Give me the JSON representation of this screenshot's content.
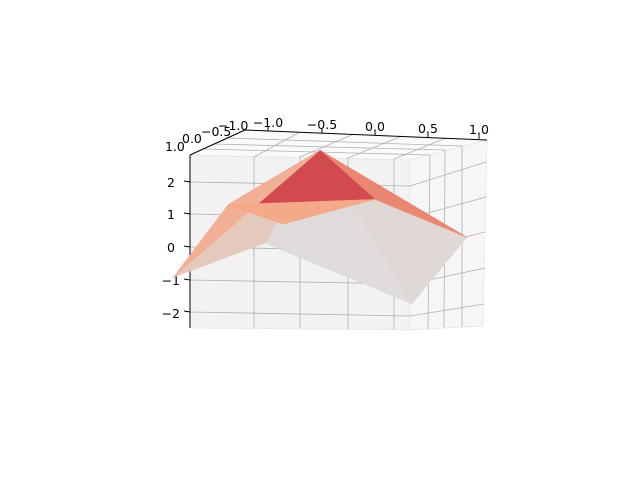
{
  "chart_data": {
    "type": "surface3d",
    "title": "",
    "xlabel": "",
    "ylabel": "",
    "zlabel": "",
    "colormap": "coolwarm",
    "grid": true,
    "x_ticks": [
      "−1.0",
      "−0.5",
      "0.0",
      "0.5",
      "1.0"
    ],
    "y_ticks": [
      "−1.0",
      "−0.5",
      "0.0",
      "0.5",
      "1.0"
    ],
    "z_ticks": [
      "−2",
      "−1",
      "0",
      "1",
      "2"
    ],
    "xlim": [
      -1,
      1
    ],
    "ylim": [
      -1,
      1
    ],
    "zlim": [
      -2.5,
      2.5
    ],
    "x": [
      -1,
      0,
      1
    ],
    "y": [
      -1,
      0,
      1
    ],
    "z": [
      [
        -1.2,
        1.1,
        0.6
      ],
      [
        -0.3,
        2.6,
        1.2
      ],
      [
        0.4,
        -2.2,
        -0.1
      ]
    ]
  },
  "colors": {
    "pane": "#f2f2f2",
    "grid": "#b0b0b0",
    "axis": "#000000"
  }
}
